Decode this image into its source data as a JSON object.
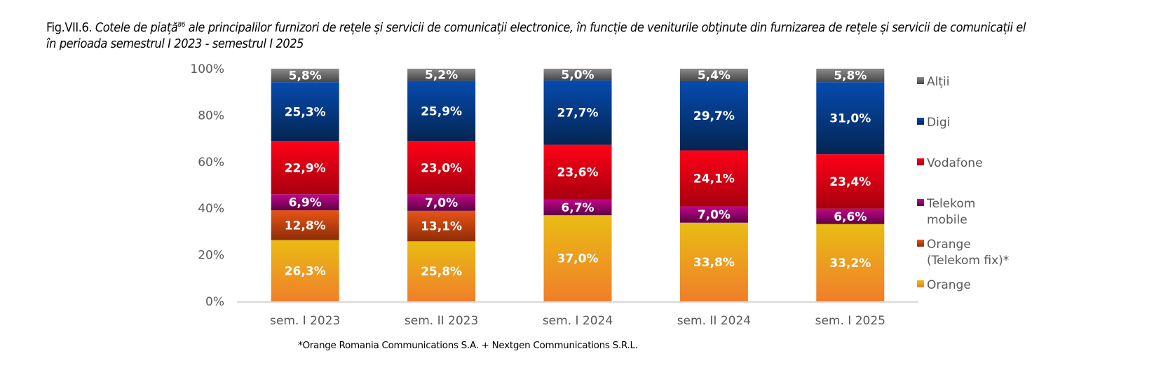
{
  "figure": {
    "label": "Fig.VII.6.",
    "caption_line1": "Cotele de piață",
    "footnote_ref": "86",
    "caption_line1_rest": " ale principalilor furnizori de rețele și servicii de comunicații electronice, în funcție de veniturile obținute din furnizarea de rețele și servicii de comunicații el",
    "caption_line2": "în perioada semestrul I 2023 - semestrul I 2025",
    "note": "*Orange Romania Communications S.A. + Nextgen Communications S.R.L."
  },
  "chart_data": {
    "type": "bar",
    "stacked": true,
    "title": "Cotele de piață ale principalilor furnizori de rețele și servicii de comunicații electronice, în funcție de veniturile obținute din furnizarea de rețele și servicii de comunicații electronice, în perioada semestrul I 2023 - semestrul I 2025",
    "xlabel": "",
    "ylabel": "",
    "ylim": [
      0,
      100
    ],
    "yticks": [
      "0%",
      "20%",
      "40%",
      "60%",
      "80%",
      "100%"
    ],
    "ytick_values": [
      0,
      20,
      40,
      60,
      80,
      100
    ],
    "grid": false,
    "legend_position": "right",
    "categories": [
      "sem. I 2023",
      "sem. II 2023",
      "sem. I 2024",
      "sem. II 2024",
      "sem. I 2025"
    ],
    "series": [
      {
        "name": "Orange",
        "colors": [
          "#E9BC14",
          "#F07E2A"
        ],
        "values": [
          26.3,
          25.8,
          37.0,
          33.8,
          33.2
        ],
        "labels": [
          "26,3%",
          "25,8%",
          "37,0%",
          "33,8%",
          "33,2%"
        ]
      },
      {
        "name": "Orange (Telekom fix)*",
        "colors": [
          "#E85415",
          "#8E2D09"
        ],
        "values": [
          12.8,
          13.1,
          0,
          0,
          0
        ],
        "labels": [
          "12,8%",
          "13,1%",
          "",
          "",
          ""
        ]
      },
      {
        "name": "Telekom mobile",
        "colors": [
          "#BF058B",
          "#5E0242"
        ],
        "values": [
          6.9,
          7.0,
          6.7,
          7.0,
          6.6
        ],
        "labels": [
          "6,9%",
          "7,0%",
          "6,7%",
          "7,0%",
          "6,6%"
        ]
      },
      {
        "name": "Vodafone",
        "colors": [
          "#FF0017",
          "#A6000F"
        ],
        "values": [
          22.9,
          23.0,
          23.6,
          24.1,
          23.4
        ],
        "labels": [
          "22,9%",
          "23,0%",
          "23,6%",
          "24,1%",
          "23,4%"
        ]
      },
      {
        "name": "Digi",
        "colors": [
          "#064BAF",
          "#042552"
        ],
        "values": [
          25.3,
          25.9,
          27.7,
          29.7,
          31.0
        ],
        "labels": [
          "25,3%",
          "25,9%",
          "27,7%",
          "29,7%",
          "31,0%"
        ]
      },
      {
        "name": "Alții",
        "colors": [
          "#8A8A8A",
          "#474747"
        ],
        "values": [
          5.8,
          5.2,
          5.0,
          5.4,
          5.8
        ],
        "labels": [
          "5,8%",
          "5,2%",
          "5,0%",
          "5,4%",
          "5,8%"
        ]
      }
    ],
    "legend": [
      {
        "lines": [
          "Alții"
        ],
        "series_index": 5
      },
      {
        "lines": [
          "Digi"
        ],
        "series_index": 4
      },
      {
        "lines": [
          "Vodafone"
        ],
        "series_index": 3
      },
      {
        "lines": [
          "Telekom",
          "mobile"
        ],
        "series_index": 2
      },
      {
        "lines": [
          "Orange",
          "(Telekom fix)*"
        ],
        "series_index": 1
      },
      {
        "lines": [
          "Orange"
        ],
        "series_index": 0
      }
    ]
  }
}
